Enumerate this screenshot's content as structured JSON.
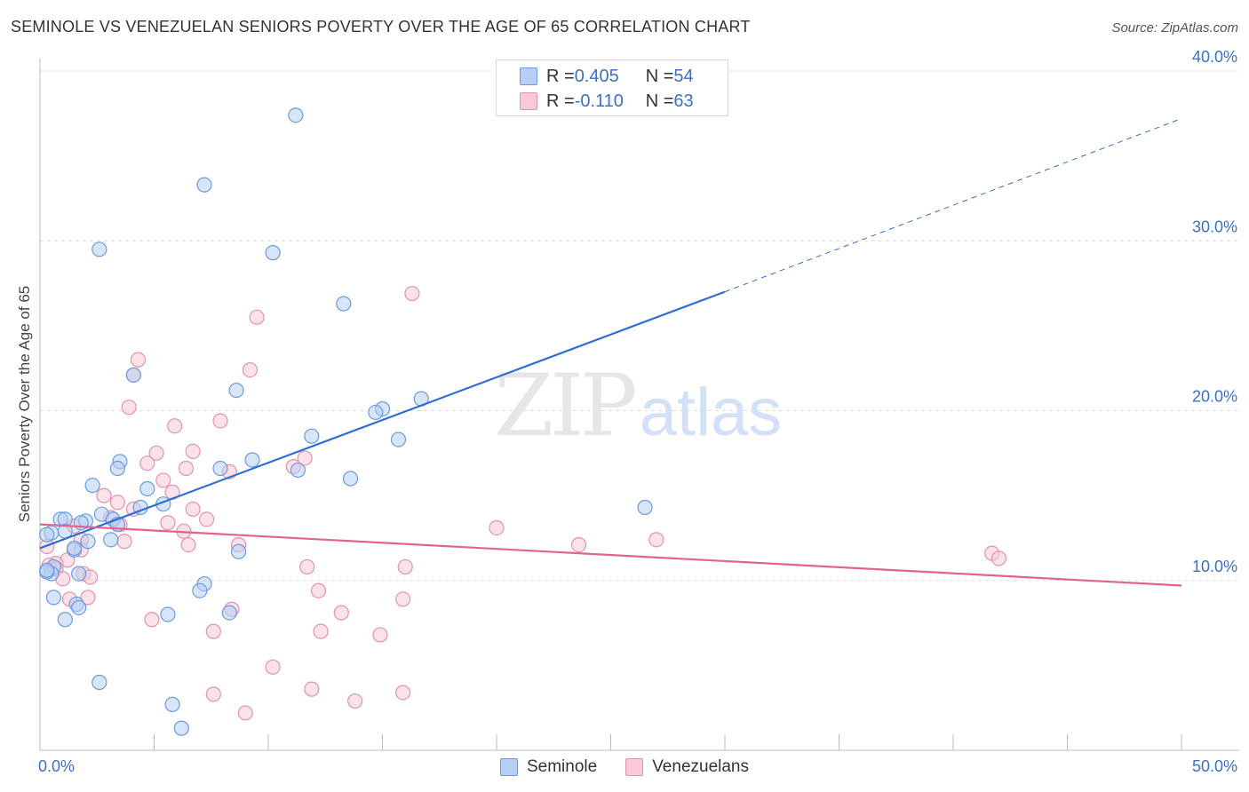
{
  "title": "SEMINOLE VS VENEZUELAN SENIORS POVERTY OVER THE AGE OF 65 CORRELATION CHART",
  "source": "Source: ZipAtlas.com",
  "watermark": {
    "zip": "ZIP",
    "atlas": "atlas"
  },
  "legend_top": [
    {
      "r_label": "R = ",
      "r_value": "0.405",
      "n_label": "N = ",
      "n_value": "54"
    },
    {
      "r_label": "R = ",
      "r_value": "-0.110",
      "n_label": "N = ",
      "n_value": "63"
    }
  ],
  "legend_bottom": [
    "Seminole",
    "Venezuelans"
  ],
  "colors": {
    "seminole_fill": "#b6cff3",
    "seminole_stroke": "#6d9be0",
    "seminole_line": "#2f6fd4",
    "venezuelan_fill": "#f8c9d6",
    "venezuelan_stroke": "#e493ad",
    "venezuelan_line": "#e0648c",
    "axis_text": "#3a70c8",
    "grid": "#dddddd"
  },
  "chart_data": {
    "type": "scatter",
    "ylabel": "Seniors Poverty Over the Age of 65",
    "xlim": [
      0,
      50
    ],
    "ylim": [
      0,
      40
    ],
    "y_ticks": [
      10,
      20,
      30,
      40
    ],
    "y_tick_labels": [
      "10.0%",
      "20.0%",
      "30.0%",
      "40.0%"
    ],
    "x_tick_labels": [
      "0.0%",
      "50.0%"
    ],
    "x_tick_label_values": [
      0,
      50
    ],
    "x_minor_ticks": [
      5,
      10,
      15,
      20,
      25,
      30,
      35,
      40,
      45,
      50
    ],
    "grid": true,
    "legend_position": "top-center",
    "series": [
      {
        "name": "Seminole",
        "R": 0.405,
        "N": 54,
        "trend": {
          "x0": 0,
          "y0": 11.9,
          "x1": 30,
          "y1": 27.0,
          "dashed_to_x": 50,
          "dashed_to_y": 37.2
        },
        "points": [
          [
            11.2,
            37.4
          ],
          [
            7.2,
            33.3
          ],
          [
            2.6,
            29.5
          ],
          [
            10.2,
            29.3
          ],
          [
            13.3,
            26.3
          ],
          [
            4.1,
            22.1
          ],
          [
            8.6,
            21.2
          ],
          [
            16.7,
            20.7
          ],
          [
            15.0,
            20.1
          ],
          [
            14.7,
            19.9
          ],
          [
            11.9,
            18.5
          ],
          [
            15.7,
            18.3
          ],
          [
            3.5,
            17.0
          ],
          [
            3.4,
            16.6
          ],
          [
            9.3,
            17.1
          ],
          [
            7.9,
            16.6
          ],
          [
            11.3,
            16.5
          ],
          [
            13.6,
            16.0
          ],
          [
            2.3,
            15.6
          ],
          [
            4.7,
            15.4
          ],
          [
            2.7,
            13.9
          ],
          [
            5.4,
            14.5
          ],
          [
            26.5,
            14.3
          ],
          [
            4.4,
            14.3
          ],
          [
            0.9,
            13.6
          ],
          [
            1.1,
            13.6
          ],
          [
            2.0,
            13.5
          ],
          [
            3.2,
            13.6
          ],
          [
            1.8,
            13.4
          ],
          [
            3.4,
            13.3
          ],
          [
            1.1,
            12.9
          ],
          [
            0.5,
            12.8
          ],
          [
            0.3,
            12.7
          ],
          [
            2.1,
            12.3
          ],
          [
            3.1,
            12.4
          ],
          [
            1.5,
            11.8
          ],
          [
            8.7,
            11.7
          ],
          [
            0.6,
            10.8
          ],
          [
            1.7,
            10.4
          ],
          [
            0.5,
            10.4
          ],
          [
            0.3,
            10.5
          ],
          [
            7.2,
            9.8
          ],
          [
            7.0,
            9.4
          ],
          [
            0.6,
            9.0
          ],
          [
            1.6,
            8.6
          ],
          [
            1.7,
            8.4
          ],
          [
            1.1,
            7.7
          ],
          [
            5.6,
            8.0
          ],
          [
            8.3,
            8.1
          ],
          [
            2.6,
            4.0
          ],
          [
            5.8,
            2.7
          ],
          [
            6.2,
            1.3
          ],
          [
            0.3,
            10.6
          ],
          [
            1.5,
            11.9
          ]
        ]
      },
      {
        "name": "Venezuelans",
        "R": -0.11,
        "N": 63,
        "trend": {
          "x0": 0,
          "y0": 13.3,
          "x1": 50,
          "y1": 9.7
        },
        "points": [
          [
            16.3,
            26.9
          ],
          [
            9.5,
            25.5
          ],
          [
            4.3,
            23.0
          ],
          [
            9.2,
            22.4
          ],
          [
            4.1,
            22.1
          ],
          [
            3.9,
            20.2
          ],
          [
            7.9,
            19.4
          ],
          [
            5.9,
            19.1
          ],
          [
            5.1,
            17.5
          ],
          [
            6.7,
            17.6
          ],
          [
            4.7,
            16.9
          ],
          [
            11.6,
            17.2
          ],
          [
            6.4,
            16.6
          ],
          [
            8.3,
            16.4
          ],
          [
            11.1,
            16.7
          ],
          [
            5.4,
            15.9
          ],
          [
            5.8,
            15.2
          ],
          [
            2.8,
            15.0
          ],
          [
            3.4,
            14.6
          ],
          [
            4.1,
            14.2
          ],
          [
            6.7,
            14.2
          ],
          [
            7.3,
            13.6
          ],
          [
            5.6,
            13.4
          ],
          [
            3.1,
            13.7
          ],
          [
            3.5,
            13.3
          ],
          [
            1.5,
            13.2
          ],
          [
            20.0,
            13.1
          ],
          [
            6.3,
            12.9
          ],
          [
            1.8,
            12.4
          ],
          [
            3.7,
            12.3
          ],
          [
            23.6,
            12.1
          ],
          [
            6.5,
            12.1
          ],
          [
            8.7,
            12.1
          ],
          [
            27.0,
            12.4
          ],
          [
            0.3,
            12.0
          ],
          [
            1.8,
            11.8
          ],
          [
            41.7,
            11.6
          ],
          [
            42.0,
            11.3
          ],
          [
            1.2,
            11.2
          ],
          [
            0.7,
            11.0
          ],
          [
            0.4,
            10.9
          ],
          [
            0.7,
            10.7
          ],
          [
            11.7,
            10.8
          ],
          [
            16.0,
            10.8
          ],
          [
            1.0,
            10.1
          ],
          [
            1.9,
            10.4
          ],
          [
            2.2,
            10.2
          ],
          [
            12.2,
            9.4
          ],
          [
            2.1,
            9.0
          ],
          [
            15.9,
            8.9
          ],
          [
            1.3,
            8.9
          ],
          [
            8.4,
            8.3
          ],
          [
            13.2,
            8.1
          ],
          [
            4.9,
            7.7
          ],
          [
            7.6,
            7.0
          ],
          [
            12.3,
            7.0
          ],
          [
            14.9,
            6.8
          ],
          [
            10.2,
            4.9
          ],
          [
            11.9,
            3.6
          ],
          [
            7.6,
            3.3
          ],
          [
            15.9,
            3.4
          ],
          [
            13.8,
            2.9
          ],
          [
            9.0,
            2.2
          ]
        ]
      }
    ]
  }
}
